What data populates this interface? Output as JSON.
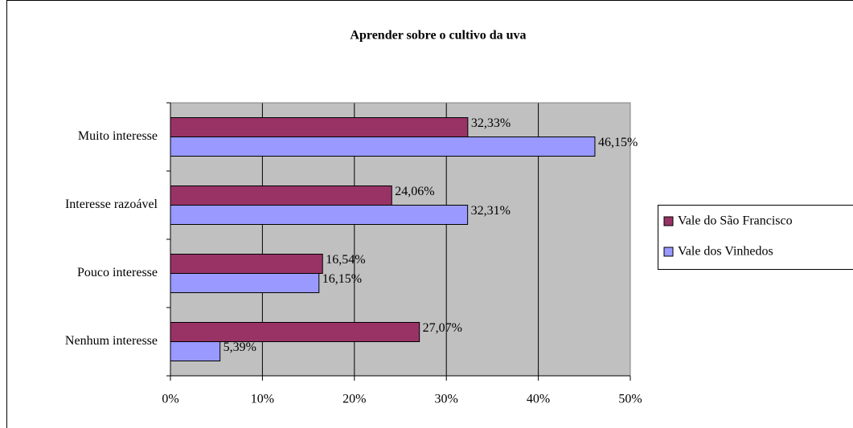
{
  "chart_data": {
    "type": "bar",
    "orientation": "horizontal",
    "title": "Aprender sobre o cultivo da uva",
    "categories": [
      "Muito interesse",
      "Interesse razoável",
      "Pouco interesse",
      "Nenhum interesse"
    ],
    "series": [
      {
        "name": "Vale do São Francisco",
        "color": "#993366",
        "values": [
          32.33,
          24.06,
          16.54,
          27.07
        ],
        "value_labels": [
          "32,33%",
          "24,06%",
          "16,54%",
          "27,07%"
        ]
      },
      {
        "name": "Vale dos Vinhedos",
        "color": "#9999ff",
        "values": [
          46.15,
          32.31,
          16.15,
          5.39
        ],
        "value_labels": [
          "46,15%",
          "32,31%",
          "16,15%",
          "5,39%"
        ]
      }
    ],
    "xlim": [
      0,
      50
    ],
    "xticks": [
      {
        "value": 0,
        "label": "0%"
      },
      {
        "value": 10,
        "label": "10%"
      },
      {
        "value": 20,
        "label": "20%"
      },
      {
        "value": 30,
        "label": "30%"
      },
      {
        "value": 40,
        "label": "40%"
      },
      {
        "value": 50,
        "label": "50%"
      }
    ],
    "grid": true,
    "legend": "right"
  }
}
